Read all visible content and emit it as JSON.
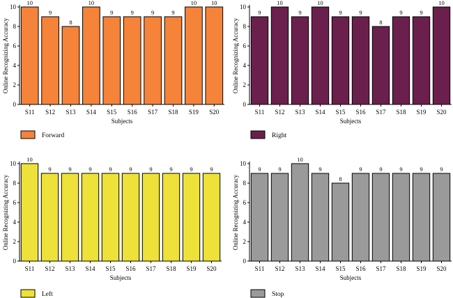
{
  "chart_data": [
    {
      "type": "bar",
      "title": "",
      "xlabel": "Subjects",
      "ylabel": "Online Recognizing Accuracy",
      "ylim": [
        0,
        10
      ],
      "yticks": [
        0,
        2,
        4,
        6,
        8,
        10
      ],
      "grid": false,
      "legend_position": "bottom-left",
      "categories": [
        "S11",
        "S12",
        "S13",
        "S14",
        "S15",
        "S16",
        "S17",
        "S18",
        "S19",
        "S20"
      ],
      "series": [
        {
          "name": "Forward",
          "color": "#f5833a",
          "values": [
            10,
            9,
            8,
            10,
            9,
            9,
            9,
            9,
            10,
            10
          ]
        }
      ]
    },
    {
      "type": "bar",
      "title": "",
      "xlabel": "Subjects",
      "ylabel": "Online Recognizing Accuracy",
      "ylim": [
        0,
        10
      ],
      "yticks": [
        0,
        2,
        4,
        6,
        8,
        10
      ],
      "grid": false,
      "legend_position": "bottom-left",
      "categories": [
        "S11",
        "S12",
        "S13",
        "S14",
        "S15",
        "S16",
        "S17",
        "S18",
        "S19",
        "S20"
      ],
      "series": [
        {
          "name": "Right",
          "color": "#6b1f4c",
          "values": [
            9,
            10,
            9,
            10,
            9,
            9,
            8,
            9,
            9,
            10
          ]
        }
      ]
    },
    {
      "type": "bar",
      "title": "",
      "xlabel": "Subjects",
      "ylabel": "Online Recognizing Accuracy",
      "ylim": [
        0,
        10
      ],
      "yticks": [
        0,
        2,
        4,
        6,
        8,
        10
      ],
      "grid": false,
      "legend_position": "bottom-left",
      "categories": [
        "S11",
        "S12",
        "S13",
        "S14",
        "S15",
        "S16",
        "S17",
        "S18",
        "S19",
        "S20"
      ],
      "series": [
        {
          "name": "Left",
          "color": "#ede13a",
          "values": [
            10,
            9,
            9,
            9,
            9,
            9,
            9,
            9,
            9,
            9
          ]
        }
      ]
    },
    {
      "type": "bar",
      "title": "",
      "xlabel": "Subjects",
      "ylabel": "Online Recognizing Accuracy",
      "ylim": [
        0,
        10
      ],
      "yticks": [
        0,
        2,
        4,
        6,
        8,
        10
      ],
      "grid": false,
      "legend_position": "bottom-left",
      "categories": [
        "S11",
        "S12",
        "S13",
        "S14",
        "S15",
        "S16",
        "S17",
        "S18",
        "S19",
        "S20"
      ],
      "series": [
        {
          "name": "Stop",
          "color": "#9a9a9a",
          "values": [
            9,
            9,
            10,
            9,
            8,
            9,
            9,
            9,
            9,
            9
          ]
        }
      ]
    }
  ]
}
